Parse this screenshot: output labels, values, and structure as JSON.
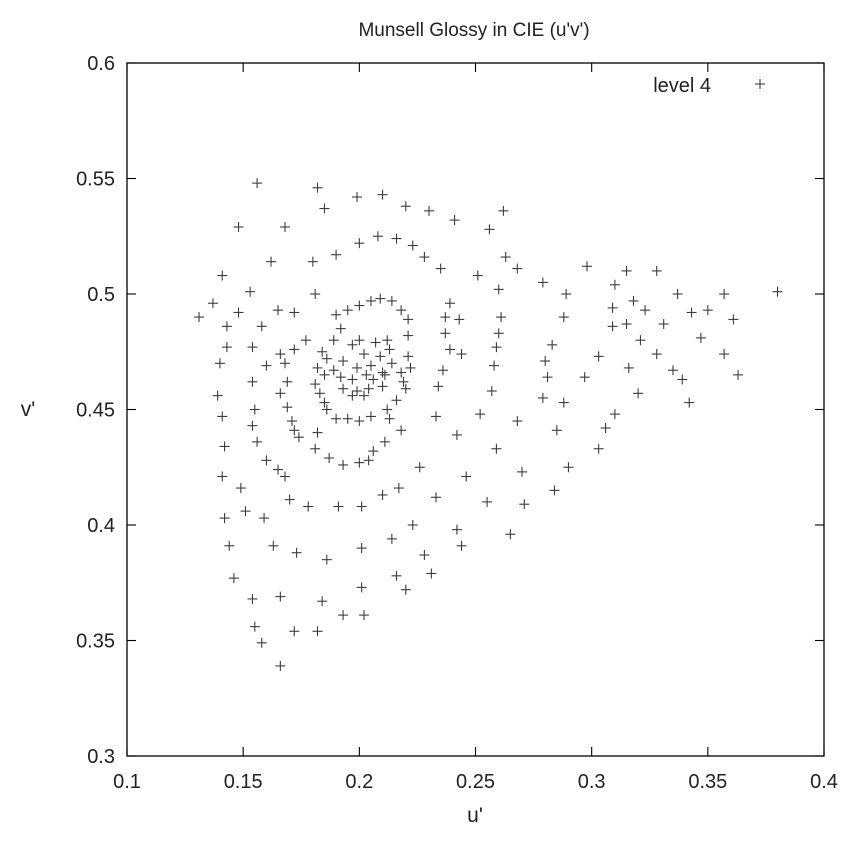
{
  "chart_data": {
    "type": "scatter",
    "title": "Munsell Glossy in CIE (u'v')",
    "xlabel": "u'",
    "ylabel": "v'",
    "xlim": [
      0.1,
      0.4
    ],
    "ylim": [
      0.3,
      0.6
    ],
    "x_ticks": [
      0.1,
      0.15,
      0.2,
      0.25,
      0.3,
      0.35,
      0.4
    ],
    "y_ticks": [
      0.3,
      0.35,
      0.4,
      0.45,
      0.5,
      0.55,
      0.6
    ],
    "x_tick_labels": [
      "0.1",
      "0.15",
      "0.2",
      "0.25",
      "0.3",
      "0.35",
      "0.4"
    ],
    "y_tick_labels": [
      "0.3",
      "0.35",
      "0.4",
      "0.45",
      "0.5",
      "0.55",
      "0.6"
    ],
    "grid": false,
    "legend_position": "top-right",
    "marker": "plus",
    "marker_color": "#3c3c3c",
    "series": [
      {
        "name": "level 4",
        "points": [
          [
            0.156,
            0.548
          ],
          [
            0.182,
            0.546
          ],
          [
            0.199,
            0.542
          ],
          [
            0.21,
            0.543
          ],
          [
            0.185,
            0.537
          ],
          [
            0.22,
            0.538
          ],
          [
            0.23,
            0.536
          ],
          [
            0.262,
            0.536
          ],
          [
            0.148,
            0.529
          ],
          [
            0.168,
            0.529
          ],
          [
            0.241,
            0.532
          ],
          [
            0.256,
            0.528
          ],
          [
            0.208,
            0.525
          ],
          [
            0.216,
            0.524
          ],
          [
            0.2,
            0.522
          ],
          [
            0.223,
            0.521
          ],
          [
            0.19,
            0.517
          ],
          [
            0.228,
            0.516
          ],
          [
            0.263,
            0.516
          ],
          [
            0.162,
            0.514
          ],
          [
            0.18,
            0.514
          ],
          [
            0.235,
            0.511
          ],
          [
            0.268,
            0.511
          ],
          [
            0.298,
            0.512
          ],
          [
            0.315,
            0.51
          ],
          [
            0.328,
            0.51
          ],
          [
            0.141,
            0.508
          ],
          [
            0.251,
            0.508
          ],
          [
            0.279,
            0.505
          ],
          [
            0.31,
            0.504
          ],
          [
            0.153,
            0.501
          ],
          [
            0.26,
            0.502
          ],
          [
            0.289,
            0.5
          ],
          [
            0.337,
            0.5
          ],
          [
            0.357,
            0.5
          ],
          [
            0.38,
            0.501
          ],
          [
            0.137,
            0.496
          ],
          [
            0.2,
            0.495
          ],
          [
            0.205,
            0.497
          ],
          [
            0.209,
            0.498
          ],
          [
            0.214,
            0.497
          ],
          [
            0.19,
            0.491
          ],
          [
            0.239,
            0.496
          ],
          [
            0.318,
            0.497
          ],
          [
            0.181,
            0.5
          ],
          [
            0.309,
            0.494
          ],
          [
            0.323,
            0.493
          ],
          [
            0.343,
            0.492
          ],
          [
            0.35,
            0.493
          ],
          [
            0.148,
            0.492
          ],
          [
            0.172,
            0.492
          ],
          [
            0.165,
            0.493
          ],
          [
            0.195,
            0.493
          ],
          [
            0.218,
            0.493
          ],
          [
            0.131,
            0.49
          ],
          [
            0.221,
            0.489
          ],
          [
            0.237,
            0.49
          ],
          [
            0.261,
            0.49
          ],
          [
            0.288,
            0.49
          ],
          [
            0.315,
            0.487
          ],
          [
            0.361,
            0.489
          ],
          [
            0.143,
            0.486
          ],
          [
            0.158,
            0.486
          ],
          [
            0.192,
            0.485
          ],
          [
            0.243,
            0.489
          ],
          [
            0.309,
            0.486
          ],
          [
            0.331,
            0.487
          ],
          [
            0.2,
            0.48
          ],
          [
            0.26,
            0.483
          ],
          [
            0.212,
            0.48
          ],
          [
            0.177,
            0.48
          ],
          [
            0.189,
            0.48
          ],
          [
            0.184,
            0.475
          ],
          [
            0.197,
            0.478
          ],
          [
            0.207,
            0.479
          ],
          [
            0.213,
            0.476
          ],
          [
            0.221,
            0.482
          ],
          [
            0.237,
            0.483
          ],
          [
            0.283,
            0.478
          ],
          [
            0.321,
            0.48
          ],
          [
            0.347,
            0.481
          ],
          [
            0.143,
            0.477
          ],
          [
            0.154,
            0.477
          ],
          [
            0.172,
            0.476
          ],
          [
            0.166,
            0.474
          ],
          [
            0.186,
            0.472
          ],
          [
            0.193,
            0.471
          ],
          [
            0.202,
            0.474
          ],
          [
            0.209,
            0.473
          ],
          [
            0.214,
            0.47
          ],
          [
            0.221,
            0.473
          ],
          [
            0.239,
            0.476
          ],
          [
            0.244,
            0.474
          ],
          [
            0.259,
            0.477
          ],
          [
            0.303,
            0.473
          ],
          [
            0.328,
            0.474
          ],
          [
            0.357,
            0.474
          ],
          [
            0.14,
            0.47
          ],
          [
            0.16,
            0.469
          ],
          [
            0.168,
            0.47
          ],
          [
            0.182,
            0.468
          ],
          [
            0.189,
            0.467
          ],
          [
            0.199,
            0.468
          ],
          [
            0.205,
            0.469
          ],
          [
            0.21,
            0.466
          ],
          [
            0.218,
            0.466
          ],
          [
            0.222,
            0.468
          ],
          [
            0.236,
            0.467
          ],
          [
            0.258,
            0.469
          ],
          [
            0.28,
            0.471
          ],
          [
            0.316,
            0.468
          ],
          [
            0.185,
            0.465
          ],
          [
            0.192,
            0.464
          ],
          [
            0.197,
            0.463
          ],
          [
            0.203,
            0.465
          ],
          [
            0.206,
            0.463
          ],
          [
            0.211,
            0.465
          ],
          [
            0.219,
            0.462
          ],
          [
            0.154,
            0.462
          ],
          [
            0.169,
            0.462
          ],
          [
            0.181,
            0.461
          ],
          [
            0.281,
            0.464
          ],
          [
            0.297,
            0.464
          ],
          [
            0.339,
            0.463
          ],
          [
            0.363,
            0.465
          ],
          [
            0.335,
            0.467
          ],
          [
            0.193,
            0.459
          ],
          [
            0.199,
            0.458
          ],
          [
            0.204,
            0.459
          ],
          [
            0.21,
            0.46
          ],
          [
            0.22,
            0.459
          ],
          [
            0.234,
            0.46
          ],
          [
            0.183,
            0.457
          ],
          [
            0.139,
            0.456
          ],
          [
            0.166,
            0.457
          ],
          [
            0.185,
            0.453
          ],
          [
            0.197,
            0.456
          ],
          [
            0.202,
            0.456
          ],
          [
            0.216,
            0.454
          ],
          [
            0.257,
            0.458
          ],
          [
            0.279,
            0.455
          ],
          [
            0.32,
            0.457
          ],
          [
            0.342,
            0.453
          ],
          [
            0.169,
            0.451
          ],
          [
            0.186,
            0.45
          ],
          [
            0.212,
            0.45
          ],
          [
            0.155,
            0.45
          ],
          [
            0.213,
            0.446
          ],
          [
            0.19,
            0.446
          ],
          [
            0.195,
            0.446
          ],
          [
            0.2,
            0.445
          ],
          [
            0.205,
            0.447
          ],
          [
            0.233,
            0.447
          ],
          [
            0.252,
            0.448
          ],
          [
            0.288,
            0.453
          ],
          [
            0.141,
            0.447
          ],
          [
            0.171,
            0.445
          ],
          [
            0.268,
            0.445
          ],
          [
            0.31,
            0.448
          ],
          [
            0.154,
            0.443
          ],
          [
            0.172,
            0.441
          ],
          [
            0.182,
            0.44
          ],
          [
            0.218,
            0.441
          ],
          [
            0.242,
            0.439
          ],
          [
            0.285,
            0.441
          ],
          [
            0.306,
            0.442
          ],
          [
            0.174,
            0.438
          ],
          [
            0.211,
            0.436
          ],
          [
            0.156,
            0.436
          ],
          [
            0.142,
            0.434
          ],
          [
            0.181,
            0.433
          ],
          [
            0.206,
            0.432
          ],
          [
            0.259,
            0.433
          ],
          [
            0.303,
            0.433
          ],
          [
            0.187,
            0.429
          ],
          [
            0.2,
            0.427
          ],
          [
            0.16,
            0.428
          ],
          [
            0.193,
            0.426
          ],
          [
            0.204,
            0.428
          ],
          [
            0.226,
            0.425
          ],
          [
            0.165,
            0.424
          ],
          [
            0.27,
            0.423
          ],
          [
            0.29,
            0.425
          ],
          [
            0.141,
            0.421
          ],
          [
            0.168,
            0.421
          ],
          [
            0.246,
            0.421
          ],
          [
            0.149,
            0.416
          ],
          [
            0.217,
            0.416
          ],
          [
            0.284,
            0.415
          ],
          [
            0.21,
            0.413
          ],
          [
            0.233,
            0.412
          ],
          [
            0.17,
            0.411
          ],
          [
            0.255,
            0.41
          ],
          [
            0.271,
            0.409
          ],
          [
            0.178,
            0.408
          ],
          [
            0.191,
            0.408
          ],
          [
            0.201,
            0.408
          ],
          [
            0.151,
            0.406
          ],
          [
            0.159,
            0.403
          ],
          [
            0.142,
            0.403
          ],
          [
            0.223,
            0.4
          ],
          [
            0.242,
            0.398
          ],
          [
            0.265,
            0.396
          ],
          [
            0.214,
            0.394
          ],
          [
            0.144,
            0.391
          ],
          [
            0.163,
            0.391
          ],
          [
            0.201,
            0.39
          ],
          [
            0.244,
            0.391
          ],
          [
            0.173,
            0.388
          ],
          [
            0.228,
            0.387
          ],
          [
            0.186,
            0.385
          ],
          [
            0.146,
            0.377
          ],
          [
            0.216,
            0.378
          ],
          [
            0.231,
            0.379
          ],
          [
            0.201,
            0.373
          ],
          [
            0.22,
            0.372
          ],
          [
            0.154,
            0.368
          ],
          [
            0.166,
            0.369
          ],
          [
            0.184,
            0.367
          ],
          [
            0.193,
            0.361
          ],
          [
            0.202,
            0.361
          ],
          [
            0.155,
            0.356
          ],
          [
            0.172,
            0.354
          ],
          [
            0.182,
            0.354
          ],
          [
            0.158,
            0.349
          ],
          [
            0.166,
            0.339
          ]
        ]
      }
    ]
  }
}
